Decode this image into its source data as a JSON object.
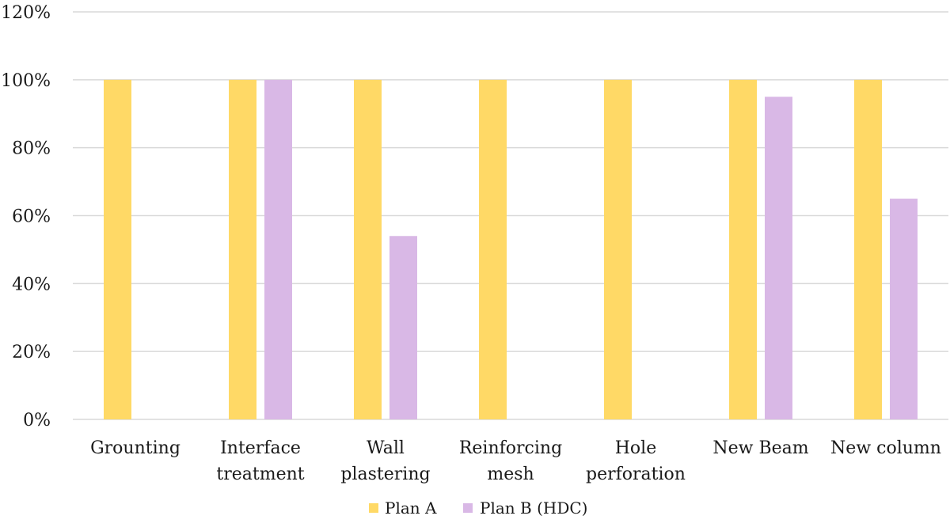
{
  "chart_data": {
    "type": "bar",
    "title": "",
    "xlabel": "",
    "ylabel": "",
    "categories": [
      [
        "Grounting"
      ],
      [
        "Interface",
        "treatment"
      ],
      [
        "Wall",
        "plastering"
      ],
      [
        "Reinforcing",
        "mesh"
      ],
      [
        "Hole",
        "perforation"
      ],
      [
        "New Beam"
      ],
      [
        "New column"
      ]
    ],
    "series": [
      {
        "name": "Plan A",
        "color": "#FFD966",
        "values": [
          100,
          100,
          100,
          100,
          100,
          100,
          100
        ]
      },
      {
        "name": "Plan B (HDC)",
        "color": "#D9B8E6",
        "values": [
          null,
          100,
          54,
          null,
          null,
          95,
          65
        ]
      }
    ],
    "ylim": [
      0,
      120
    ],
    "y_ticks": [
      0,
      20,
      40,
      60,
      80,
      100,
      120
    ],
    "y_tick_format": "percent",
    "grid": true,
    "legend_position": "bottom"
  }
}
